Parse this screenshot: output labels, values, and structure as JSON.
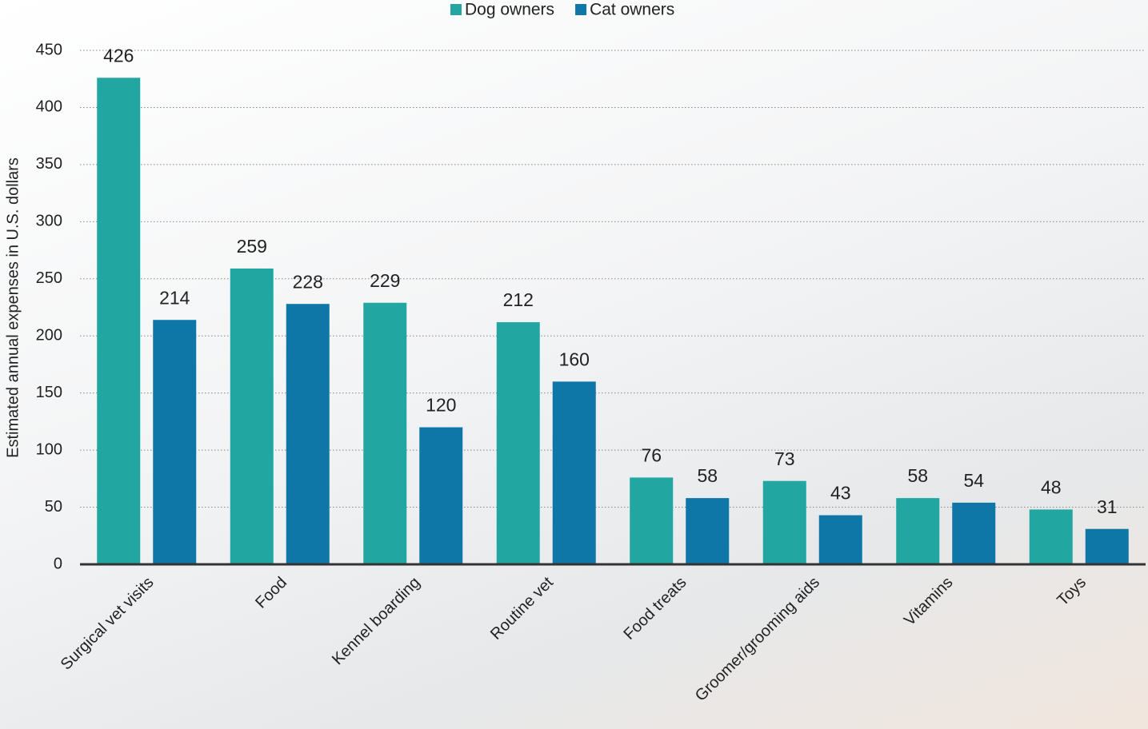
{
  "chart_data": {
    "type": "bar",
    "y_label": "Estimated annual expenses in U.S. dollars",
    "categories": [
      "Surgical vet visits",
      "Food",
      "Kennel boarding",
      "Routine vet",
      "Food treats",
      "Groomer/grooming aids",
      "Vitamins",
      "Toys"
    ],
    "series": [
      {
        "name": "Dog owners",
        "color": "#21a6a1",
        "values": [
          426,
          259,
          229,
          212,
          76,
          73,
          58,
          48
        ]
      },
      {
        "name": "Cat owners",
        "color": "#0f76a8",
        "values": [
          214,
          228,
          120,
          160,
          58,
          43,
          54,
          31
        ]
      }
    ],
    "ylim": [
      0,
      450
    ],
    "yticks": [
      0,
      50,
      100,
      150,
      200,
      250,
      300,
      350,
      400,
      450
    ],
    "grid": true,
    "legend": "top"
  }
}
